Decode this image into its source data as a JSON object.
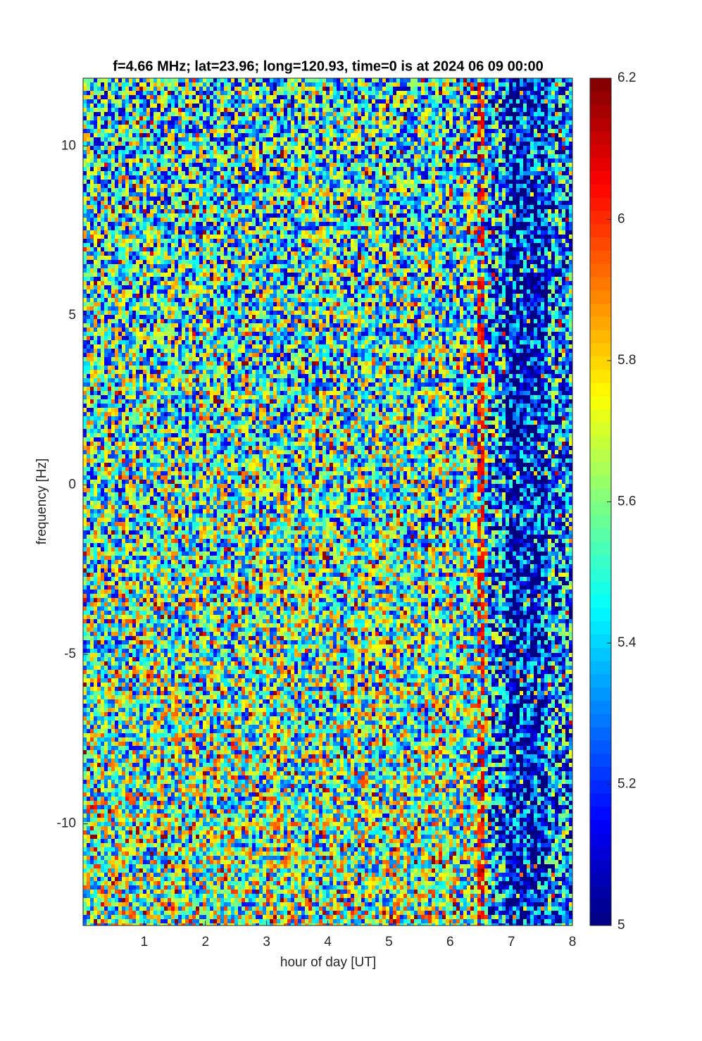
{
  "chart_data": {
    "type": "heatmap",
    "title": "f=4.66 MHz;  lat=23.96; long=120.93, time=0 is at 2024 06 09 00:00",
    "xlabel": "hour of day [UT]",
    "ylabel": "frequency [Hz]",
    "xlim": [
      0,
      8
    ],
    "xticks": [
      1,
      2,
      3,
      4,
      5,
      6,
      7,
      8
    ],
    "ylim": [
      -13,
      12
    ],
    "yticks": [
      -10,
      -5,
      0,
      5,
      10
    ],
    "colormap": "jet",
    "clim": [
      5,
      6.2
    ],
    "cticks": [
      5,
      5.2,
      5.4,
      5.6,
      5.8,
      6,
      6.2
    ]
  }
}
